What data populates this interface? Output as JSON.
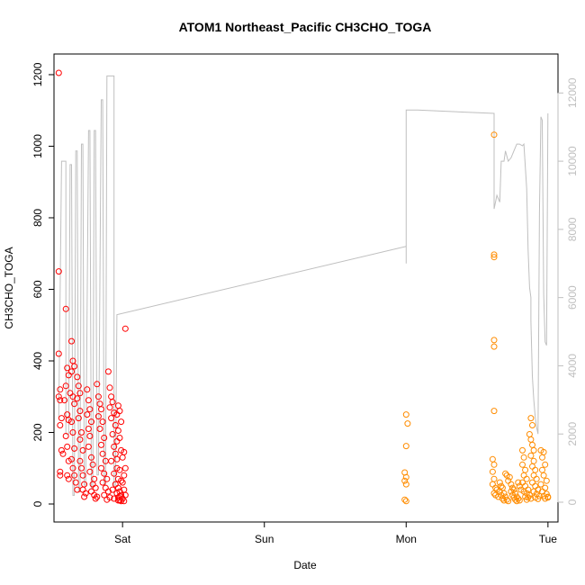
{
  "chart_data": {
    "type": "scatter",
    "title": "ATOM1 Northeast_Pacific CH3CHO_TOGA",
    "xlabel": "Date",
    "ylabel": "CH3CHO_TOGA",
    "x_unit": "days since Fri 00:00 (ticks at day boundaries)",
    "xlim": [
      0.58,
      4.02
    ],
    "x_ticks": [
      {
        "value": 1,
        "label": "Sat"
      },
      {
        "value": 2,
        "label": "Sun"
      },
      {
        "value": 3,
        "label": "Mon"
      },
      {
        "value": 4,
        "label": "Tue"
      }
    ],
    "ylim": [
      0,
      1215
    ],
    "y_ticks": [
      0,
      200,
      400,
      600,
      800,
      1000,
      1200
    ],
    "y2_ticks": [
      0,
      2000,
      4000,
      6000,
      8000,
      10000,
      12000
    ],
    "y2lim": [
      0,
      12800
    ],
    "grid": false,
    "colors": {
      "series1": "#ff0000",
      "series2": "#ff8c00",
      "altitude": "#bfbfbf"
    },
    "series": [
      {
        "name": "",
        "color": "#ff0000",
        "points": [
          [
            0.55,
            1205
          ],
          [
            0.55,
            650
          ],
          [
            0.55,
            420
          ],
          [
            0.56,
            320
          ],
          [
            0.55,
            300
          ],
          [
            0.56,
            290
          ],
          [
            0.57,
            240
          ],
          [
            0.56,
            220
          ],
          [
            0.57,
            150
          ],
          [
            0.58,
            140
          ],
          [
            0.56,
            90
          ],
          [
            0.56,
            80
          ],
          [
            0.6,
            545
          ],
          [
            0.61,
            380
          ],
          [
            0.62,
            360
          ],
          [
            0.6,
            330
          ],
          [
            0.59,
            290
          ],
          [
            0.61,
            250
          ],
          [
            0.62,
            235
          ],
          [
            0.6,
            190
          ],
          [
            0.61,
            160
          ],
          [
            0.62,
            120
          ],
          [
            0.61,
            80
          ],
          [
            0.62,
            70
          ],
          [
            0.64,
            455
          ],
          [
            0.65,
            400
          ],
          [
            0.66,
            385
          ],
          [
            0.64,
            370
          ],
          [
            0.63,
            310
          ],
          [
            0.65,
            300
          ],
          [
            0.66,
            280
          ],
          [
            0.64,
            230
          ],
          [
            0.65,
            200
          ],
          [
            0.66,
            155
          ],
          [
            0.64,
            125
          ],
          [
            0.65,
            100
          ],
          [
            0.66,
            80
          ],
          [
            0.67,
            60
          ],
          [
            0.68,
            40
          ],
          [
            0.68,
            355
          ],
          [
            0.69,
            330
          ],
          [
            0.7,
            310
          ],
          [
            0.68,
            295
          ],
          [
            0.7,
            260
          ],
          [
            0.69,
            240
          ],
          [
            0.71,
            200
          ],
          [
            0.7,
            180
          ],
          [
            0.72,
            150
          ],
          [
            0.7,
            120
          ],
          [
            0.71,
            100
          ],
          [
            0.72,
            80
          ],
          [
            0.73,
            55
          ],
          [
            0.72,
            40
          ],
          [
            0.74,
            30
          ],
          [
            0.73,
            20
          ],
          [
            0.75,
            320
          ],
          [
            0.76,
            290
          ],
          [
            0.77,
            265
          ],
          [
            0.75,
            250
          ],
          [
            0.78,
            230
          ],
          [
            0.76,
            210
          ],
          [
            0.77,
            190
          ],
          [
            0.76,
            160
          ],
          [
            0.78,
            130
          ],
          [
            0.79,
            110
          ],
          [
            0.77,
            90
          ],
          [
            0.8,
            70
          ],
          [
            0.79,
            55
          ],
          [
            0.81,
            45
          ],
          [
            0.78,
            35
          ],
          [
            0.8,
            25
          ],
          [
            0.82,
            20
          ],
          [
            0.81,
            15
          ],
          [
            0.82,
            335
          ],
          [
            0.83,
            300
          ],
          [
            0.84,
            280
          ],
          [
            0.85,
            265
          ],
          [
            0.83,
            245
          ],
          [
            0.86,
            230
          ],
          [
            0.84,
            210
          ],
          [
            0.87,
            185
          ],
          [
            0.85,
            165
          ],
          [
            0.86,
            140
          ],
          [
            0.88,
            120
          ],
          [
            0.85,
            100
          ],
          [
            0.87,
            85
          ],
          [
            0.89,
            70
          ],
          [
            0.86,
            60
          ],
          [
            0.88,
            45
          ],
          [
            0.9,
            35
          ],
          [
            0.87,
            25
          ],
          [
            0.91,
            18
          ],
          [
            0.89,
            12
          ],
          [
            0.9,
            370
          ],
          [
            0.91,
            325
          ],
          [
            0.92,
            300
          ],
          [
            0.93,
            285
          ],
          [
            0.91,
            270
          ],
          [
            0.94,
            255
          ],
          [
            0.92,
            240
          ],
          [
            0.95,
            220
          ],
          [
            0.93,
            195
          ],
          [
            0.96,
            175
          ],
          [
            0.94,
            160
          ],
          [
            0.95,
            140
          ],
          [
            0.92,
            120
          ],
          [
            0.96,
            100
          ],
          [
            0.94,
            85
          ],
          [
            0.97,
            70
          ],
          [
            0.95,
            55
          ],
          [
            0.93,
            40
          ],
          [
            0.96,
            30
          ],
          [
            0.98,
            22
          ],
          [
            0.94,
            15
          ],
          [
            0.97,
            10
          ],
          [
            0.97,
            275
          ],
          [
            0.98,
            260
          ],
          [
            0.96,
            250
          ],
          [
            0.99,
            230
          ],
          [
            0.97,
            205
          ],
          [
            0.98,
            185
          ],
          [
            0.99,
            150
          ],
          [
            0.96,
            125
          ],
          [
            0.98,
            95
          ],
          [
            0.99,
            65
          ],
          [
            0.97,
            45
          ],
          [
            0.98,
            35
          ],
          [
            0.99,
            25
          ],
          [
            0.97,
            18
          ],
          [
            0.98,
            10
          ],
          [
            0.99,
            8
          ],
          [
            1.02,
            490
          ],
          [
            1.01,
            145
          ],
          [
            1.0,
            130
          ],
          [
            1.02,
            100
          ],
          [
            1.01,
            80
          ],
          [
            1.0,
            60
          ],
          [
            1.01,
            40
          ],
          [
            1.02,
            25
          ],
          [
            1.0,
            15
          ],
          [
            1.01,
            8
          ]
        ]
      },
      {
        "name": "",
        "color": "#ff8c00",
        "points": [
          [
            3.0,
            250
          ],
          [
            3.01,
            225
          ],
          [
            3.0,
            162
          ],
          [
            2.99,
            88
          ],
          [
            3.0,
            75
          ],
          [
            2.99,
            65
          ],
          [
            3.0,
            55
          ],
          [
            2.99,
            12
          ],
          [
            3.0,
            8
          ],
          [
            3.62,
            1032
          ],
          [
            3.62,
            697
          ],
          [
            3.62,
            690
          ],
          [
            3.62,
            458
          ],
          [
            3.62,
            440
          ],
          [
            3.62,
            260
          ],
          [
            3.61,
            125
          ],
          [
            3.62,
            110
          ],
          [
            3.61,
            90
          ],
          [
            3.62,
            70
          ],
          [
            3.61,
            55
          ],
          [
            3.63,
            45
          ],
          [
            3.64,
            40
          ],
          [
            3.62,
            30
          ],
          [
            3.63,
            25
          ],
          [
            3.65,
            20
          ],
          [
            3.66,
            60
          ],
          [
            3.67,
            50
          ],
          [
            3.68,
            45
          ],
          [
            3.66,
            35
          ],
          [
            3.69,
            30
          ],
          [
            3.67,
            25
          ],
          [
            3.7,
            20
          ],
          [
            3.68,
            15
          ],
          [
            3.71,
            12
          ],
          [
            3.69,
            10
          ],
          [
            3.72,
            8
          ],
          [
            3.7,
            85
          ],
          [
            3.71,
            80
          ],
          [
            3.73,
            75
          ],
          [
            3.72,
            65
          ],
          [
            3.74,
            55
          ],
          [
            3.75,
            45
          ],
          [
            3.76,
            40
          ],
          [
            3.74,
            35
          ],
          [
            3.77,
            30
          ],
          [
            3.75,
            25
          ],
          [
            3.78,
            20
          ],
          [
            3.76,
            18
          ],
          [
            3.79,
            15
          ],
          [
            3.77,
            12
          ],
          [
            3.8,
            10
          ],
          [
            3.78,
            8
          ],
          [
            3.79,
            60
          ],
          [
            3.8,
            50
          ],
          [
            3.81,
            40
          ],
          [
            3.82,
            150
          ],
          [
            3.83,
            130
          ],
          [
            3.82,
            110
          ],
          [
            3.84,
            95
          ],
          [
            3.83,
            80
          ],
          [
            3.85,
            70
          ],
          [
            3.82,
            60
          ],
          [
            3.84,
            50
          ],
          [
            3.86,
            40
          ],
          [
            3.83,
            35
          ],
          [
            3.85,
            30
          ],
          [
            3.87,
            25
          ],
          [
            3.84,
            20
          ],
          [
            3.86,
            18
          ],
          [
            3.88,
            15
          ],
          [
            3.85,
            12
          ],
          [
            3.88,
            240
          ],
          [
            3.89,
            220
          ],
          [
            3.87,
            195
          ],
          [
            3.88,
            180
          ],
          [
            3.89,
            165
          ],
          [
            3.9,
            150
          ],
          [
            3.88,
            135
          ],
          [
            3.9,
            120
          ],
          [
            3.89,
            105
          ],
          [
            3.91,
            95
          ],
          [
            3.9,
            80
          ],
          [
            3.92,
            70
          ],
          [
            3.89,
            60
          ],
          [
            3.91,
            50
          ],
          [
            3.93,
            40
          ],
          [
            3.9,
            35
          ],
          [
            3.92,
            28
          ],
          [
            3.94,
            22
          ],
          [
            3.91,
            18
          ],
          [
            3.93,
            14
          ],
          [
            3.95,
            150
          ],
          [
            3.97,
            145
          ],
          [
            3.96,
            130
          ],
          [
            3.98,
            110
          ],
          [
            3.96,
            95
          ],
          [
            3.97,
            80
          ],
          [
            3.99,
            65
          ],
          [
            3.95,
            55
          ],
          [
            3.98,
            45
          ],
          [
            3.96,
            35
          ],
          [
            3.99,
            28
          ],
          [
            3.97,
            22
          ],
          [
            4.0,
            18
          ],
          [
            3.98,
            15
          ],
          [
            4.0,
            20
          ]
        ]
      }
    ],
    "altitude_line": {
      "axis": "right",
      "points": [
        [
          0.55,
          2500
        ],
        [
          0.57,
          10000
        ],
        [
          0.6,
          10000
        ],
        [
          0.6,
          2000
        ],
        [
          0.62,
          2000
        ],
        [
          0.63,
          9900
        ],
        [
          0.64,
          9900
        ],
        [
          0.65,
          200
        ],
        [
          0.66,
          200
        ],
        [
          0.67,
          10300
        ],
        [
          0.68,
          10300
        ],
        [
          0.69,
          300
        ],
        [
          0.7,
          300
        ],
        [
          0.71,
          10500
        ],
        [
          0.72,
          10500
        ],
        [
          0.73,
          500
        ],
        [
          0.74,
          500
        ],
        [
          0.76,
          10900
        ],
        [
          0.77,
          10900
        ],
        [
          0.78,
          400
        ],
        [
          0.79,
          400
        ],
        [
          0.8,
          10900
        ],
        [
          0.81,
          10900
        ],
        [
          0.82,
          800
        ],
        [
          0.83,
          800
        ],
        [
          0.85,
          11800
        ],
        [
          0.86,
          11800
        ],
        [
          0.87,
          500
        ],
        [
          0.88,
          500
        ],
        [
          0.89,
          12500
        ],
        [
          0.94,
          12500
        ],
        [
          0.94,
          500
        ],
        [
          0.95,
          500
        ],
        [
          0.96,
          5500
        ],
        [
          3.0,
          7500
        ],
        [
          3.0,
          7000
        ],
        [
          3.0,
          11500
        ],
        [
          3.08,
          11500
        ],
        [
          3.62,
          11400
        ],
        [
          3.62,
          10800
        ],
        [
          3.62,
          8600
        ],
        [
          3.64,
          9000
        ],
        [
          3.66,
          8800
        ],
        [
          3.67,
          10000
        ],
        [
          3.69,
          10000
        ],
        [
          3.7,
          10300
        ],
        [
          3.72,
          10000
        ],
        [
          3.74,
          10100
        ],
        [
          3.76,
          10300
        ],
        [
          3.78,
          10500
        ],
        [
          3.8,
          10500
        ],
        [
          3.82,
          10450
        ],
        [
          3.83,
          10500
        ],
        [
          3.85,
          9200
        ],
        [
          3.86,
          7400
        ],
        [
          3.87,
          6300
        ],
        [
          3.88,
          6000
        ],
        [
          3.88,
          5300
        ],
        [
          3.89,
          3700
        ],
        [
          3.9,
          3000
        ],
        [
          3.91,
          2500
        ],
        [
          3.92,
          2200
        ],
        [
          3.93,
          2000
        ],
        [
          3.94,
          8500
        ],
        [
          3.95,
          11300
        ],
        [
          3.96,
          11200
        ],
        [
          3.97,
          6100
        ],
        [
          3.98,
          4700
        ],
        [
          3.99,
          4600
        ],
        [
          4.0,
          11400
        ]
      ]
    }
  }
}
